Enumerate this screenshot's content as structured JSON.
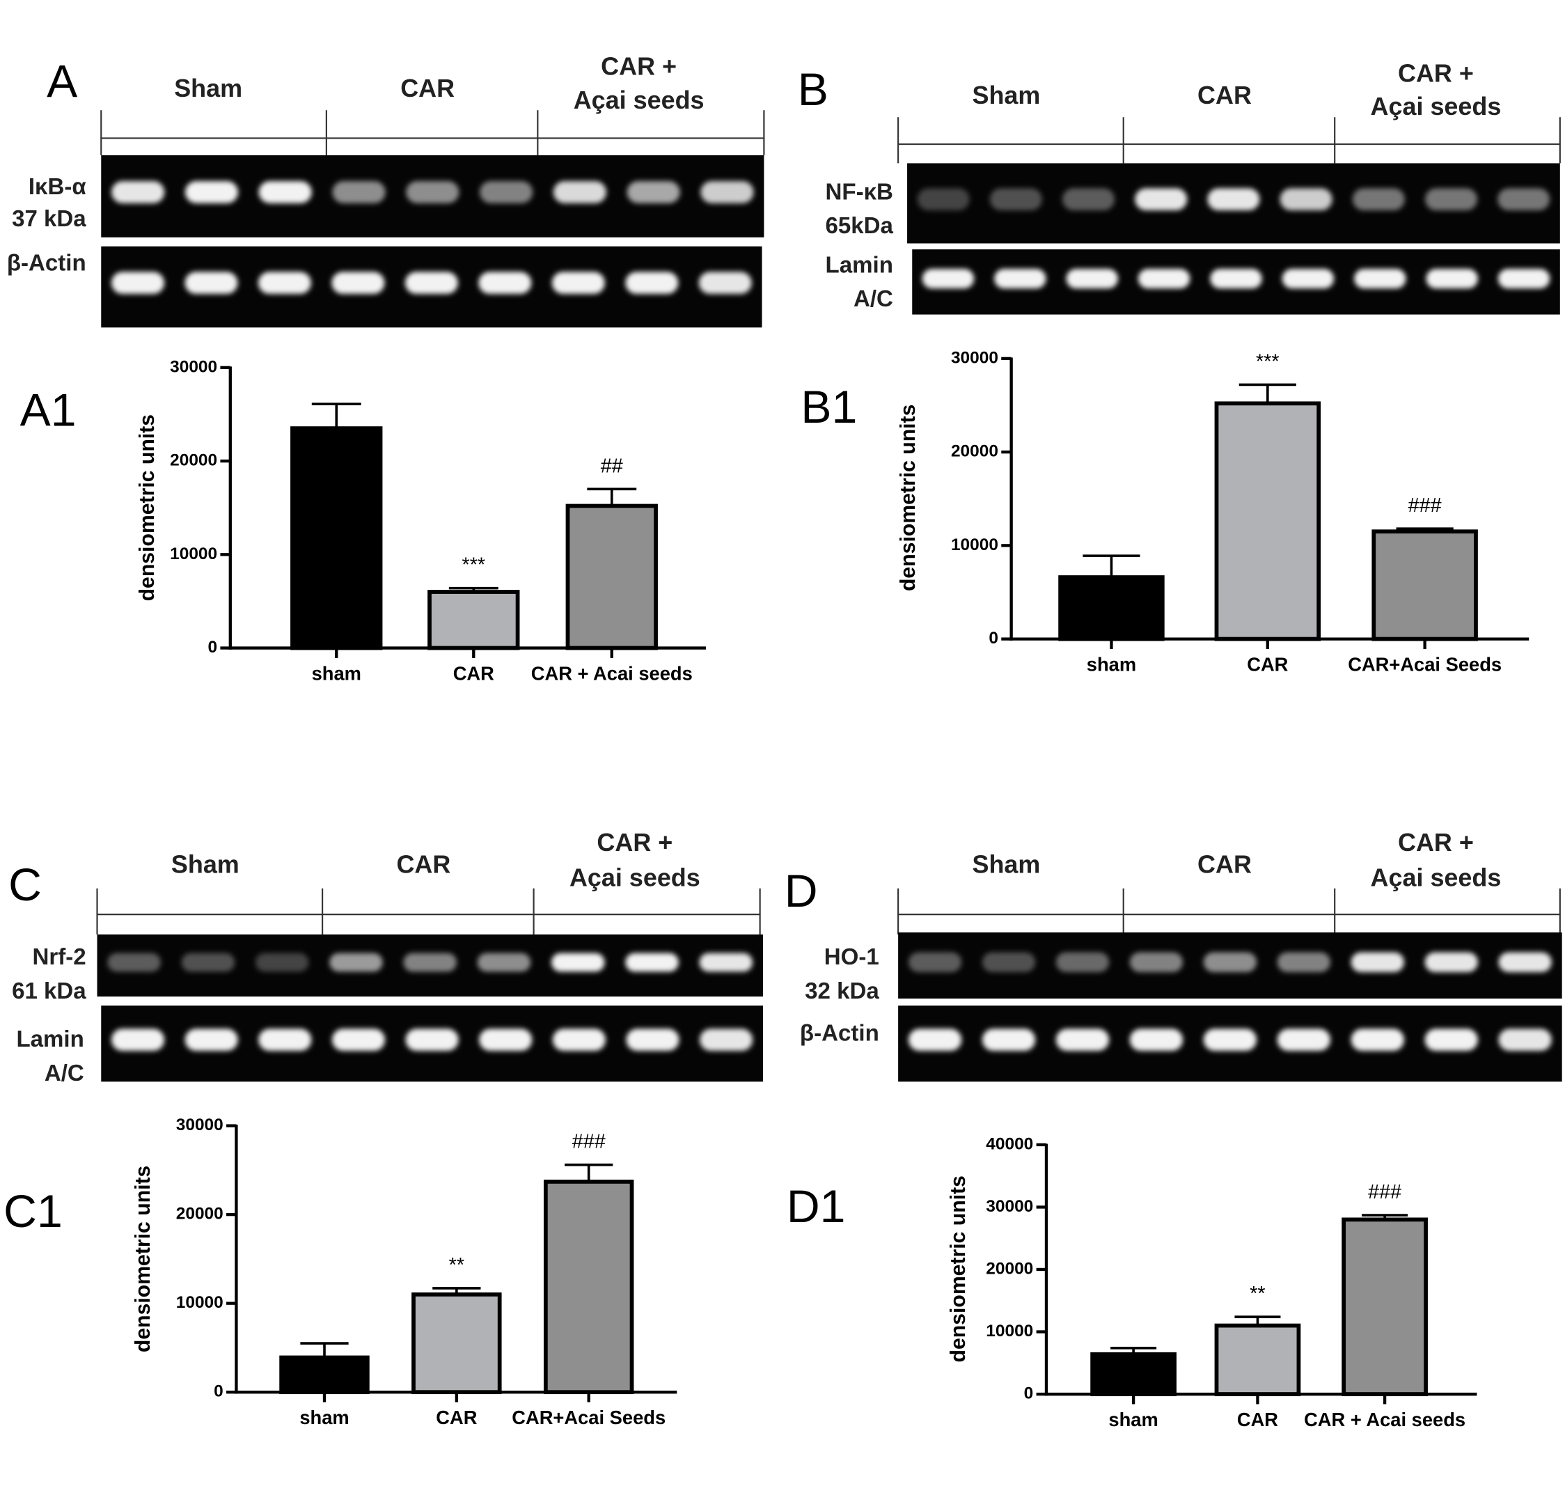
{
  "panels": [
    {
      "letter": "A",
      "groups": [
        [
          "Sham"
        ],
        [
          "CAR"
        ],
        [
          "CAR +",
          "Açai seeds"
        ]
      ],
      "blots": [
        {
          "label": [
            "IκB-α",
            "37 kDa"
          ],
          "bands": [
            0.9,
            0.95,
            0.95,
            0.55,
            0.55,
            0.5,
            0.85,
            0.65,
            0.8
          ]
        },
        {
          "label": [
            "β-Actin"
          ],
          "bands": [
            0.95,
            0.95,
            0.95,
            0.95,
            0.95,
            0.95,
            0.95,
            0.95,
            0.9
          ]
        }
      ]
    },
    {
      "letter": "B",
      "groups": [
        [
          "Sham"
        ],
        [
          "CAR"
        ],
        [
          "CAR +",
          "Açai seeds"
        ]
      ],
      "blots": [
        {
          "label": [
            "NF-κB",
            "65kDa"
          ],
          "bands": [
            0.25,
            0.3,
            0.35,
            0.9,
            0.9,
            0.8,
            0.45,
            0.45,
            0.45
          ]
        },
        {
          "label": [
            "Lamin",
            "A/C"
          ],
          "bands": [
            0.95,
            0.95,
            0.95,
            0.95,
            0.95,
            0.95,
            0.95,
            0.95,
            0.95
          ]
        }
      ]
    },
    {
      "letter": "C",
      "groups": [
        [
          "Sham"
        ],
        [
          "CAR"
        ],
        [
          "CAR +",
          "Açai seeds"
        ]
      ],
      "blots": [
        {
          "label": [
            "Nrf-2",
            "61 kDa"
          ],
          "bands": [
            0.35,
            0.3,
            0.25,
            0.6,
            0.5,
            0.55,
            0.95,
            0.95,
            0.9
          ]
        },
        {
          "label": [
            "Lamin",
            "A/C"
          ],
          "bands": [
            0.95,
            0.95,
            0.95,
            0.95,
            0.95,
            0.95,
            0.95,
            0.95,
            0.9
          ]
        }
      ]
    },
    {
      "letter": "D",
      "groups": [
        [
          "Sham"
        ],
        [
          "CAR"
        ],
        [
          "CAR +",
          "Açai seeds"
        ]
      ],
      "blots": [
        {
          "label": [
            "HO-1",
            "32 kDa"
          ],
          "bands": [
            0.35,
            0.3,
            0.4,
            0.5,
            0.55,
            0.5,
            0.9,
            0.9,
            0.9
          ]
        },
        {
          "label": [
            "β-Actin"
          ],
          "bands": [
            0.95,
            0.95,
            0.95,
            0.95,
            0.95,
            0.95,
            0.95,
            0.95,
            0.9
          ]
        }
      ]
    }
  ],
  "chart_data": [
    {
      "type": "bar",
      "label": "A1",
      "ylabel": "densiometric units",
      "categories": [
        "sham",
        "CAR",
        "CAR + Acai seeds"
      ],
      "values": [
        23500,
        6000,
        15200
      ],
      "errors": [
        2600,
        400,
        1800
      ],
      "annotations": [
        null,
        "***",
        "##"
      ],
      "colors": [
        "#000000",
        "#b1b2b5",
        "#8f8f8f"
      ],
      "ylim": [
        0,
        30000
      ],
      "yticks": [
        0,
        10000,
        20000,
        30000
      ]
    },
    {
      "type": "bar",
      "label": "B1",
      "ylabel": "densiometric units",
      "categories": [
        "sham",
        "CAR",
        "CAR+Acai Seeds"
      ],
      "values": [
        6600,
        25200,
        11500
      ],
      "errors": [
        2300,
        2000,
        300
      ],
      "annotations": [
        null,
        "***",
        "###"
      ],
      "colors": [
        "#000000",
        "#b1b2b5",
        "#8f8f8f"
      ],
      "ylim": [
        0,
        30000
      ],
      "yticks": [
        0,
        10000,
        20000,
        30000
      ]
    },
    {
      "type": "bar",
      "label": "C1",
      "ylabel": "densiometric units",
      "categories": [
        "sham",
        "CAR",
        "CAR+Acai Seeds"
      ],
      "values": [
        3900,
        11000,
        23700
      ],
      "errors": [
        1600,
        700,
        1900
      ],
      "annotations": [
        null,
        "**",
        "###"
      ],
      "colors": [
        "#000000",
        "#b1b2b5",
        "#8f8f8f"
      ],
      "ylim": [
        0,
        30000
      ],
      "yticks": [
        0,
        10000,
        20000,
        30000
      ]
    },
    {
      "type": "bar",
      "label": "D1",
      "ylabel": "densiometric units",
      "categories": [
        "sham",
        "CAR",
        "CAR + Acai seeds"
      ],
      "values": [
        6400,
        11000,
        28000
      ],
      "errors": [
        1000,
        1400,
        700
      ],
      "annotations": [
        null,
        "**",
        "###"
      ],
      "colors": [
        "#000000",
        "#b1b2b5",
        "#8f8f8f"
      ],
      "ylim": [
        0,
        40000
      ],
      "yticks": [
        0,
        10000,
        20000,
        30000,
        40000
      ]
    }
  ]
}
